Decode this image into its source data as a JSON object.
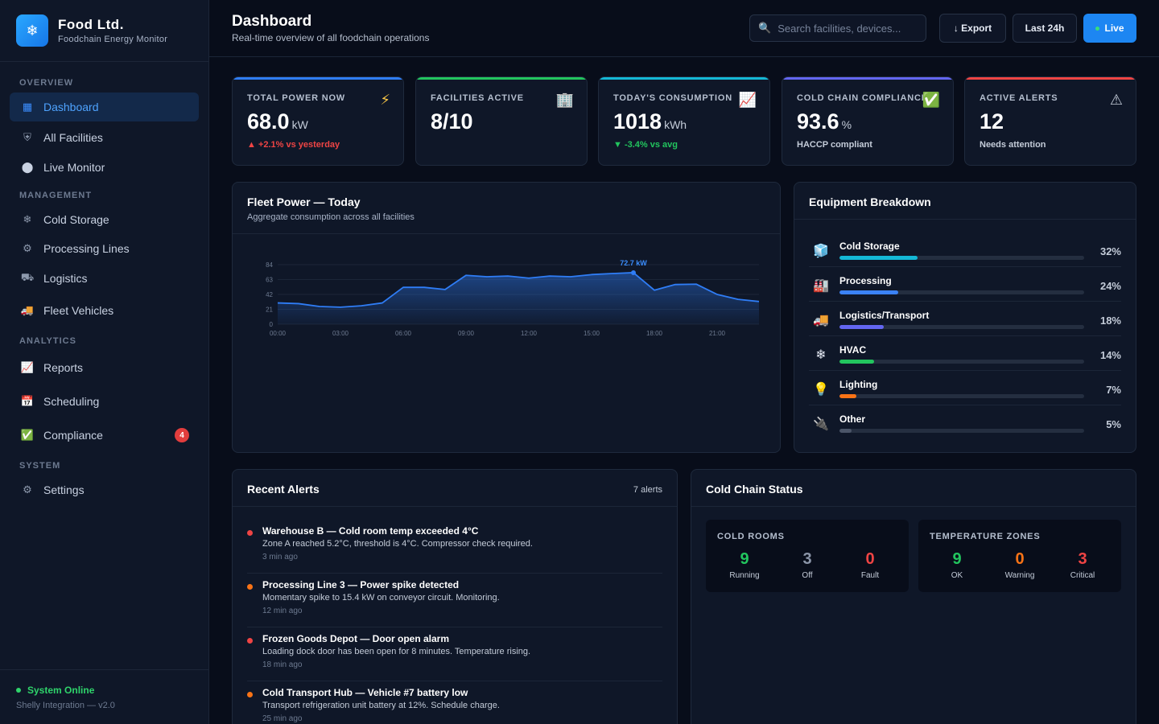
{
  "brand": {
    "logo_icon": "snowflake-icon",
    "name": "Food Ltd.",
    "subtitle": "Foodchain Energy Monitor"
  },
  "sidebar": {
    "sections": {
      "overview": "OVERVIEW",
      "management": "MANAGEMENT",
      "analytics": "ANALYTICS",
      "system": "SYSTEM"
    },
    "items": [
      {
        "label": "Dashboard",
        "icon": "grid-icon",
        "active": true
      },
      {
        "label": "All Facilities",
        "icon": "shield-icon"
      },
      {
        "label": "Live Monitor",
        "icon": "circle-icon"
      },
      {
        "label": "Cold Storage",
        "icon": "snowflake-icon"
      },
      {
        "label": "Processing Lines",
        "icon": "gear-icon"
      },
      {
        "label": "Logistics",
        "icon": "truck-icon"
      },
      {
        "label": "Fleet Vehicles",
        "icon": "delivery-truck-icon"
      },
      {
        "label": "Reports",
        "icon": "chart-icon"
      },
      {
        "label": "Scheduling",
        "icon": "calendar-icon"
      },
      {
        "label": "Compliance",
        "icon": "checkmark-icon",
        "badge": "4"
      },
      {
        "label": "Settings",
        "icon": "gear-icon"
      }
    ],
    "status": "System Online",
    "version": "Shelly Integration — v2.0"
  },
  "header": {
    "title": "Dashboard",
    "subtitle": "Real-time overview of all foodchain operations",
    "search_placeholder": "Search facilities, devices...",
    "export_label": "↓ Export",
    "range_label": "Last 24h",
    "live_label": "Live"
  },
  "stats": [
    {
      "label": "TOTAL POWER NOW",
      "value": "68.0",
      "unit": "kW",
      "foot": "▲ +2.1% vs yesterday",
      "foot_color": "#ef4444",
      "accent": "#2f7df6",
      "icon": "lightning-icon"
    },
    {
      "label": "FACILITIES ACTIVE",
      "value": "8/10",
      "unit": "",
      "foot": "",
      "foot_color": "#c4ccd9",
      "accent": "#22c55e",
      "icon": "building-icon"
    },
    {
      "label": "TODAY'S CONSUMPTION",
      "value": "1018",
      "unit": "kWh",
      "foot": "▼ -3.4% vs avg",
      "foot_color": "#22c55e",
      "accent": "#14b8d6",
      "icon": "chart-icon"
    },
    {
      "label": "COLD CHAIN COMPLIANCE",
      "value": "93.6",
      "unit": "%",
      "foot": "HACCP compliant",
      "foot_color": "#c4ccd9",
      "accent": "#6366f1",
      "icon": "checkmark-icon"
    },
    {
      "label": "ACTIVE ALERTS",
      "value": "12",
      "unit": "",
      "foot": "Needs attention",
      "foot_color": "#c4ccd9",
      "accent": "#ef4444",
      "icon": "warning-icon"
    }
  ],
  "fleet_chart": {
    "title": "Fleet Power — Today",
    "subtitle": "Aggregate consumption across all facilities",
    "peak_label": "72.7 kW"
  },
  "chart_data": {
    "type": "area",
    "title": "Fleet Power — Today",
    "subtitle": "Aggregate consumption across all facilities",
    "ylim": [
      0,
      84
    ],
    "y_ticks": [
      "0",
      "21",
      "42",
      "63",
      "84"
    ],
    "x_ticks": [
      "00:00",
      "03:00",
      "06:00",
      "09:00",
      "12:00",
      "15:00",
      "18:00",
      "21:00"
    ],
    "x": [
      0,
      1,
      2,
      3,
      4,
      5,
      6,
      7,
      8,
      9,
      10,
      11,
      12,
      13,
      14,
      15,
      16,
      17,
      18,
      19,
      20,
      21,
      22,
      23
    ],
    "values": [
      30,
      29,
      25,
      24,
      26,
      30,
      52,
      52,
      49,
      69,
      67,
      68,
      65,
      68,
      67,
      70,
      71.5,
      72.7,
      48,
      56,
      56.5,
      42,
      35,
      32
    ],
    "annotation": {
      "x": 17,
      "y": 72.7,
      "label": "72.7 kW"
    },
    "grid": true,
    "color": "#2f7df6"
  },
  "equipment": {
    "title": "Equipment Breakdown",
    "items": [
      {
        "name": "Cold Storage",
        "pct": "32%",
        "value": 32,
        "color": "#14b8d6",
        "icon": "ice-icon"
      },
      {
        "name": "Processing",
        "pct": "24%",
        "value": 24,
        "color": "#3b82f6",
        "icon": "factory-icon"
      },
      {
        "name": "Logistics/Transport",
        "pct": "18%",
        "value": 18,
        "color": "#6366f1",
        "icon": "truck-icon"
      },
      {
        "name": "HVAC",
        "pct": "14%",
        "value": 14,
        "color": "#22c55e",
        "icon": "snowflake-icon"
      },
      {
        "name": "Lighting",
        "pct": "7%",
        "value": 7,
        "color": "#f97316",
        "icon": "lightbulb-icon"
      },
      {
        "name": "Other",
        "pct": "5%",
        "value": 5,
        "color": "#4b5568",
        "icon": "plug-icon"
      }
    ]
  },
  "alerts": {
    "title": "Recent Alerts",
    "count": "7 alerts",
    "items": [
      {
        "title": "Warehouse B — Cold room temp exceeded 4°C",
        "desc": "Zone A reached 5.2°C, threshold is 4°C. Compressor check required.",
        "time": "3 min ago",
        "color": "#ef4444"
      },
      {
        "title": "Processing Line 3 — Power spike detected",
        "desc": "Momentary spike to 15.4 kW on conveyor circuit. Monitoring.",
        "time": "12 min ago",
        "color": "#f97316"
      },
      {
        "title": "Frozen Goods Depot — Door open alarm",
        "desc": "Loading dock door has been open for 8 minutes. Temperature rising.",
        "time": "18 min ago",
        "color": "#ef4444"
      },
      {
        "title": "Cold Transport Hub — Vehicle #7 battery low",
        "desc": "Transport refrigeration unit battery at 12%. Schedule charge.",
        "time": "25 min ago",
        "color": "#f97316"
      }
    ]
  },
  "cold_chain": {
    "title": "Cold Chain Status",
    "rooms": {
      "label": "COLD ROOMS",
      "stats": [
        {
          "num": "9",
          "cap": "Running",
          "color": "#22c55e"
        },
        {
          "num": "3",
          "cap": "Off",
          "color": "#8b95a8"
        },
        {
          "num": "0",
          "cap": "Fault",
          "color": "#ef4444"
        }
      ]
    },
    "zones": {
      "label": "TEMPERATURE ZONES",
      "stats": [
        {
          "num": "9",
          "cap": "OK",
          "color": "#22c55e"
        },
        {
          "num": "0",
          "cap": "Warning",
          "color": "#f97316"
        },
        {
          "num": "3",
          "cap": "Critical",
          "color": "#ef4444"
        }
      ]
    }
  }
}
